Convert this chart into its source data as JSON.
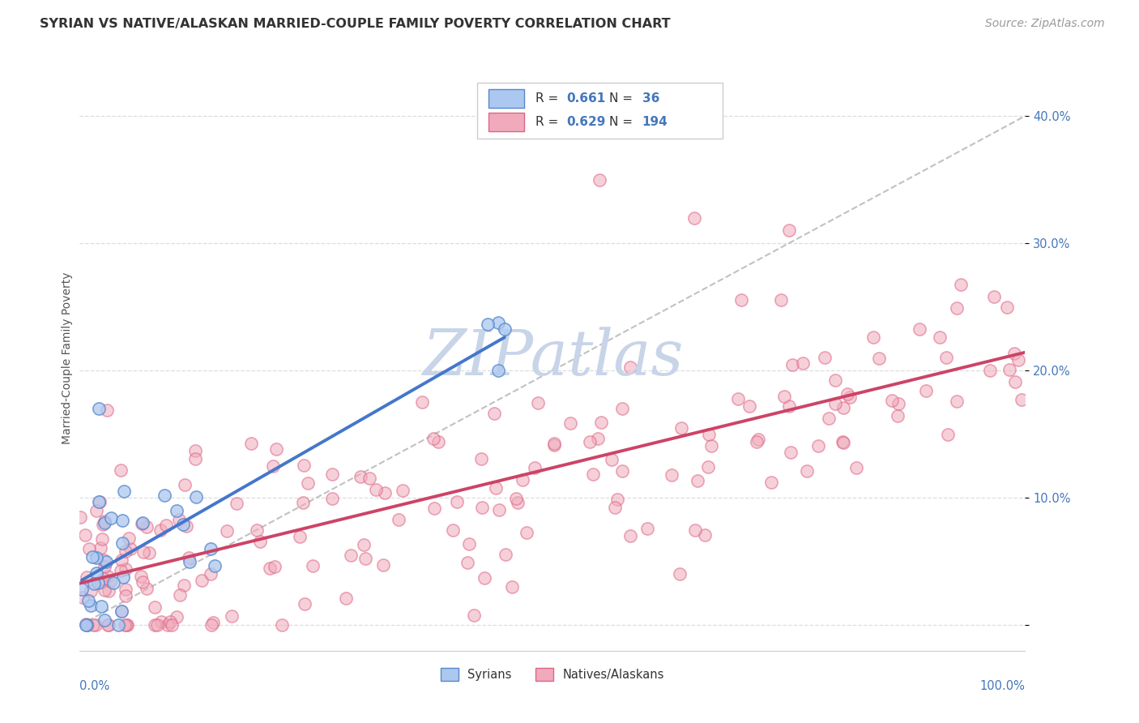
{
  "title": "SYRIAN VS NATIVE/ALASKAN MARRIED-COUPLE FAMILY POVERTY CORRELATION CHART",
  "source_text": "Source: ZipAtlas.com",
  "ylabel": "Married-Couple Family Poverty",
  "xlim": [
    0,
    100
  ],
  "ylim": [
    -2,
    44
  ],
  "ytick_vals": [
    0,
    10,
    20,
    30,
    40
  ],
  "ytick_labels": [
    "",
    "10.0%",
    "20.0%",
    "30.0%",
    "40.0%"
  ],
  "syrian_R": 0.661,
  "syrian_N": 36,
  "native_R": 0.629,
  "native_N": 194,
  "syrian_face_color": "#adc8f0",
  "syrian_edge_color": "#5588cc",
  "native_face_color": "#f0aabb",
  "native_edge_color": "#dd6688",
  "syrian_line_color": "#4477cc",
  "native_line_color": "#cc4466",
  "ref_line_color": "#bbbbbb",
  "background_color": "#ffffff",
  "grid_color": "#dddddd",
  "watermark_color": "#c8d4e8",
  "title_color": "#333333",
  "axis_label_color": "#555555",
  "tick_label_color": "#4477bb",
  "legend_text_dark": "#333333",
  "legend_value_color": "#4477bb",
  "marker_size": 120,
  "marker_alpha": 0.55,
  "marker_linewidth": 1.2
}
